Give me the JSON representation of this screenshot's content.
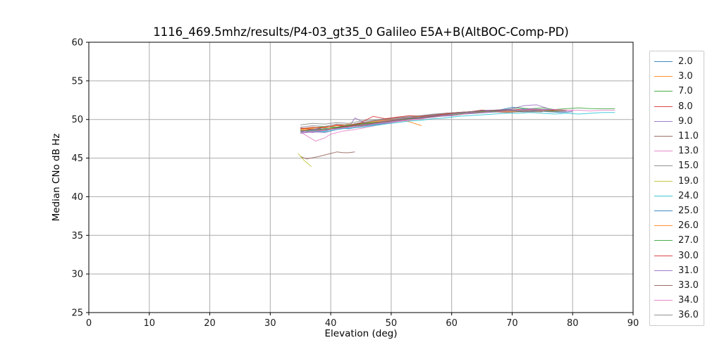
{
  "chart_data": {
    "type": "line",
    "title": "1116_469.5mhz/results/P4-03_gt35_0 Galileo E5A+B(AltBOC-Comp-PD)",
    "xlabel": "Elevation (deg)",
    "ylabel": "Median CNo dB Hz",
    "xlim": [
      0,
      90
    ],
    "ylim": [
      25,
      60
    ],
    "xticks": [
      0,
      10,
      20,
      30,
      40,
      50,
      60,
      70,
      80,
      90
    ],
    "yticks": [
      25,
      30,
      35,
      40,
      45,
      50,
      55,
      60
    ],
    "grid": true,
    "grid_color": "#ababab",
    "spine_color": "#000000",
    "legend_position": "right",
    "line_opacity": 0.8,
    "series": [
      {
        "name": "2.0",
        "color": "#1f77b4",
        "x": [
          35,
          37,
          39,
          41,
          43,
          45,
          47,
          49,
          51,
          53,
          55,
          57,
          59,
          61,
          63,
          65,
          67,
          69,
          70,
          71,
          73,
          74
        ],
        "y": [
          48.3,
          48.6,
          48.5,
          48.9,
          48.8,
          49.1,
          49.3,
          49.5,
          49.8,
          50.0,
          50.3,
          50.4,
          50.7,
          50.8,
          51.0,
          51.2,
          51.1,
          51.4,
          51.6,
          51.5,
          51.2,
          51.3
        ]
      },
      {
        "name": "3.0",
        "color": "#ff7f0e",
        "x": [
          35,
          37,
          39,
          41,
          43,
          45,
          47,
          49,
          51,
          53,
          55
        ],
        "y": [
          48.6,
          48.8,
          48.7,
          49.0,
          49.2,
          49.4,
          49.7,
          49.9,
          50.1,
          49.7,
          49.2
        ]
      },
      {
        "name": "7.0",
        "color": "#2ca02c",
        "x": [
          35,
          37,
          39,
          41,
          43,
          45,
          47,
          49,
          51,
          53,
          55,
          57,
          59,
          61,
          63,
          65,
          67,
          69,
          71,
          73,
          75,
          77,
          79,
          81,
          83,
          85,
          87
        ],
        "y": [
          48.8,
          48.9,
          49.1,
          49.0,
          49.3,
          49.5,
          49.6,
          49.8,
          50.0,
          50.1,
          50.3,
          50.5,
          50.6,
          50.8,
          50.9,
          51.0,
          51.2,
          51.3,
          51.5,
          51.4,
          51.5,
          51.3,
          51.4,
          51.5,
          51.4,
          51.4,
          51.4
        ]
      },
      {
        "name": "8.0",
        "color": "#d62728",
        "x": [
          35,
          37,
          39,
          41,
          43,
          45,
          47,
          49,
          51,
          53,
          55,
          57,
          59,
          61,
          63,
          65,
          67,
          69,
          71,
          73,
          75,
          77
        ],
        "y": [
          48.9,
          48.7,
          49.0,
          49.2,
          49.1,
          49.5,
          49.8,
          50.0,
          50.3,
          50.2,
          50.5,
          50.6,
          50.8,
          50.9,
          51.0,
          51.2,
          51.1,
          51.3,
          51.2,
          51.3,
          51.2,
          51.2
        ]
      },
      {
        "name": "9.0",
        "color": "#9467bd",
        "x": [
          35,
          37,
          39,
          41,
          43,
          44,
          46,
          48,
          50,
          52,
          54,
          56,
          58,
          60,
          62,
          64,
          66,
          68,
          70,
          72,
          74,
          76
        ],
        "y": [
          48.2,
          48.4,
          48.3,
          48.7,
          49.0,
          50.2,
          49.4,
          49.6,
          49.9,
          50.1,
          50.2,
          50.4,
          50.6,
          50.7,
          50.9,
          51.0,
          51.2,
          51.1,
          51.4,
          51.8,
          51.9,
          51.4
        ]
      },
      {
        "name": "11.0",
        "color": "#8c564b",
        "x": [
          35,
          36,
          38,
          40,
          41,
          42,
          43,
          44
        ],
        "y": [
          45.2,
          44.9,
          45.2,
          45.6,
          45.8,
          45.7,
          45.7,
          45.8
        ]
      },
      {
        "name": "13.0",
        "color": "#e377c2",
        "x": [
          35,
          36,
          37.5,
          39,
          40,
          42,
          44,
          46,
          48,
          50,
          52,
          54,
          56,
          58,
          60,
          62,
          64,
          66,
          68,
          70,
          72,
          74,
          76,
          78,
          80
        ],
        "y": [
          48.4,
          47.9,
          47.2,
          47.6,
          48.1,
          48.5,
          48.7,
          49.0,
          49.3,
          49.6,
          49.8,
          50.0,
          50.2,
          50.4,
          50.5,
          50.7,
          50.8,
          51.0,
          51.1,
          51.2,
          51.1,
          51.2,
          51.1,
          51.0,
          51.1
        ]
      },
      {
        "name": "15.0",
        "color": "#7f7f7f",
        "x": [
          35,
          37,
          39,
          41,
          43,
          45,
          47,
          49,
          51,
          53,
          55,
          57,
          59,
          61,
          63,
          65,
          67,
          69,
          71,
          73,
          75,
          77
        ],
        "y": [
          49.3,
          49.5,
          49.4,
          49.6,
          49.5,
          49.8,
          49.9,
          50.1,
          50.2,
          50.4,
          50.5,
          50.7,
          50.8,
          50.9,
          51.0,
          51.1,
          51.2,
          51.2,
          51.3,
          51.2,
          51.3,
          51.2
        ]
      },
      {
        "name": "19.0",
        "color": "#bcbd22",
        "x": [
          34.6,
          35.6,
          36.8
        ],
        "y": [
          45.6,
          44.7,
          43.9
        ]
      },
      {
        "name": "24.0",
        "color": "#17becf",
        "x": [
          35,
          37,
          39,
          41,
          43,
          45,
          47,
          49,
          51,
          53,
          55,
          57,
          59,
          61,
          63,
          65,
          67,
          69,
          71,
          73,
          75,
          77,
          79,
          81,
          83,
          85,
          87
        ],
        "y": [
          48.4,
          48.5,
          48.4,
          48.7,
          48.9,
          49.0,
          49.2,
          49.4,
          49.6,
          49.8,
          49.9,
          50.1,
          50.2,
          50.4,
          50.5,
          50.6,
          50.7,
          50.8,
          50.8,
          50.9,
          50.8,
          50.7,
          50.8,
          50.7,
          50.8,
          50.9,
          50.9
        ]
      },
      {
        "name": "25.0",
        "color": "#1f77b4",
        "x": [
          36,
          38,
          40,
          42,
          44,
          46,
          48,
          50,
          52,
          54,
          56,
          58,
          60,
          62,
          64,
          66,
          68,
          70,
          72,
          74,
          76,
          78,
          80
        ],
        "y": [
          48.6,
          48.8,
          48.7,
          49.0,
          49.2,
          49.3,
          49.5,
          49.7,
          49.9,
          50.1,
          50.2,
          50.4,
          50.5,
          50.7,
          50.8,
          50.9,
          51.0,
          51.1,
          51.0,
          51.1,
          51.0,
          50.9,
          51.0
        ]
      },
      {
        "name": "26.0",
        "color": "#ff7f0e",
        "x": [
          35,
          37,
          39,
          41,
          43,
          45,
          47,
          49,
          51,
          53,
          55,
          57,
          59,
          61,
          63,
          65,
          67,
          69,
          71,
          73,
          75,
          77
        ],
        "y": [
          48.7,
          48.9,
          49.0,
          49.2,
          49.4,
          49.3,
          49.6,
          49.8,
          50.0,
          50.2,
          50.4,
          50.5,
          50.7,
          50.8,
          50.9,
          51.0,
          51.1,
          51.0,
          51.1,
          51.2,
          51.1,
          51.1
        ]
      },
      {
        "name": "27.0",
        "color": "#2ca02c",
        "x": [
          35,
          37,
          39,
          41,
          43,
          45,
          47,
          49,
          51,
          53,
          55,
          57,
          59,
          61,
          63,
          65,
          67,
          69,
          71,
          73,
          75,
          77,
          79
        ],
        "y": [
          48.6,
          48.5,
          48.8,
          49.0,
          49.2,
          49.4,
          49.6,
          49.7,
          49.9,
          50.1,
          50.3,
          50.4,
          50.6,
          50.7,
          50.9,
          51.0,
          51.1,
          51.2,
          51.1,
          51.2,
          51.2,
          51.1,
          51.2
        ]
      },
      {
        "name": "30.0",
        "color": "#d62728",
        "x": [
          35,
          37,
          39,
          41,
          43,
          45,
          47,
          49,
          51,
          53,
          55,
          57,
          59,
          61,
          63,
          65,
          67,
          69,
          71,
          73,
          75,
          77,
          79
        ],
        "y": [
          48.8,
          49.0,
          48.9,
          49.3,
          49.1,
          49.6,
          50.4,
          50.1,
          50.3,
          50.5,
          50.4,
          50.6,
          50.7,
          50.9,
          51.0,
          51.1,
          51.2,
          51.1,
          51.3,
          51.2,
          51.3,
          51.2,
          51.2
        ]
      },
      {
        "name": "31.0",
        "color": "#9467bd",
        "x": [
          35,
          37,
          39,
          41,
          43,
          45,
          47,
          49,
          51,
          53,
          55,
          57,
          59,
          61,
          63,
          65,
          67,
          69,
          71,
          73,
          75,
          77
        ],
        "y": [
          48.5,
          48.3,
          48.6,
          48.9,
          49.1,
          49.3,
          49.5,
          49.8,
          50.0,
          50.2,
          50.3,
          50.5,
          50.6,
          50.8,
          50.9,
          51.1,
          51.2,
          51.3,
          51.2,
          51.4,
          51.3,
          51.3
        ]
      },
      {
        "name": "33.0",
        "color": "#8c564b",
        "x": [
          35,
          37,
          39,
          41,
          43,
          45,
          47,
          49,
          51,
          53,
          55,
          57,
          59,
          61,
          63,
          65,
          67,
          69,
          71,
          73,
          75
        ],
        "y": [
          48.5,
          48.7,
          48.6,
          48.9,
          49.1,
          49.2,
          49.5,
          49.7,
          49.9,
          50.0,
          50.2,
          50.4,
          50.5,
          50.6,
          50.8,
          50.9,
          51.0,
          50.9,
          51.0,
          51.0,
          51.0
        ]
      },
      {
        "name": "34.0",
        "color": "#e377c2",
        "x": [
          35,
          37,
          39,
          41,
          43,
          45,
          47,
          49,
          51,
          53,
          55,
          57,
          59,
          61,
          63,
          65,
          67,
          69,
          71,
          73,
          75,
          77,
          79,
          81,
          83,
          85,
          87
        ],
        "y": [
          48.3,
          48.5,
          48.6,
          48.8,
          49.0,
          49.1,
          49.4,
          49.6,
          49.8,
          50.0,
          50.1,
          50.3,
          50.5,
          50.6,
          50.8,
          50.9,
          51.0,
          51.1,
          51.2,
          51.3,
          51.2,
          51.3,
          51.2,
          51.2,
          51.1,
          51.2,
          51.2
        ]
      },
      {
        "name": "36.0",
        "color": "#7f7f7f",
        "x": [
          35,
          37,
          39,
          41,
          43,
          45,
          47,
          49,
          51,
          53,
          55,
          57,
          59,
          61,
          63,
          65,
          67,
          69,
          71,
          73,
          75,
          77,
          79
        ],
        "y": [
          49.0,
          49.2,
          49.1,
          49.4,
          49.3,
          49.6,
          49.8,
          50.0,
          50.1,
          50.3,
          50.5,
          50.6,
          50.8,
          50.9,
          51.0,
          51.1,
          51.0,
          51.2,
          51.1,
          51.2,
          51.1,
          51.0,
          51.1
        ]
      }
    ]
  }
}
